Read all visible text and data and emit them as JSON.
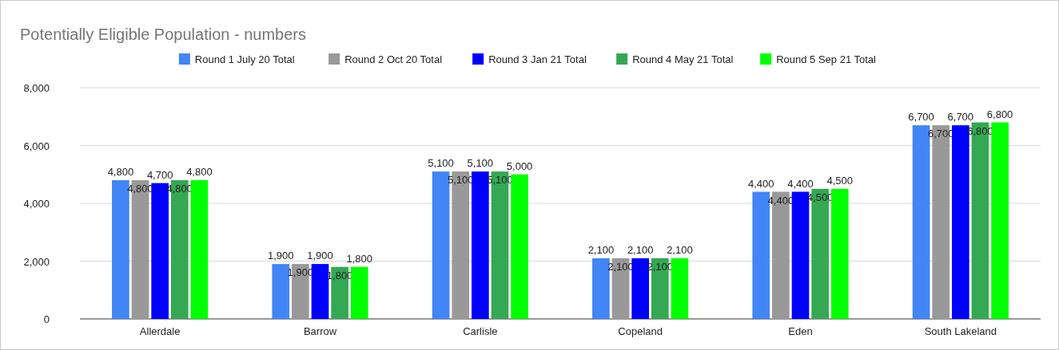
{
  "chart_data": {
    "type": "bar",
    "title": "Potentially Eligible Population - numbers",
    "categories": [
      "Allerdale",
      "Barrow",
      "Carlisle",
      "Copeland",
      "Eden",
      "South Lakeland"
    ],
    "series": [
      {
        "name": "Round 1 July 20 Total",
        "color": "#4285f4",
        "values": [
          4800,
          1900,
          5100,
          2100,
          4400,
          6700
        ],
        "value_labels": [
          "4,800",
          "1,900",
          "5,100",
          "2,100",
          "4,400",
          "6,700"
        ]
      },
      {
        "name": "Round 2 Oct 20 Total",
        "color": "#999999",
        "values": [
          4800,
          1900,
          5100,
          2100,
          4400,
          6700
        ],
        "value_labels": [
          "4,800",
          "1,900",
          "5,100",
          "2,100",
          "4,400",
          "6,700"
        ]
      },
      {
        "name": "Round 3 Jan 21 Total",
        "color": "#0000ff",
        "values": [
          4700,
          1900,
          5100,
          2100,
          4400,
          6700
        ],
        "value_labels": [
          "4,700",
          "1,900",
          "5,100",
          "2,100",
          "4,400",
          "6,700"
        ]
      },
      {
        "name": "Round 4 May 21 Total",
        "color": "#34a853",
        "values": [
          4800,
          1800,
          5100,
          2100,
          4500,
          6800
        ],
        "value_labels": [
          "4,800",
          "1,800",
          "5,100",
          "2,100",
          "4,500",
          "6,800"
        ]
      },
      {
        "name": "Round 5 Sep 21 Total",
        "color": "#00ff00",
        "values": [
          4800,
          1800,
          5000,
          2100,
          4500,
          6800
        ],
        "value_labels": [
          "4,800",
          "1,800",
          "5,000",
          "2,100",
          "4,500",
          "6,800"
        ]
      }
    ],
    "ylim": [
      0,
      8000
    ],
    "yticks": [
      {
        "value": 0,
        "label": "0"
      },
      {
        "value": 2000,
        "label": "2,000"
      },
      {
        "value": 4000,
        "label": "4,000"
      },
      {
        "value": 6000,
        "label": "6,000"
      },
      {
        "value": 8000,
        "label": "8,000"
      }
    ],
    "grid": "y",
    "legend": "top"
  }
}
